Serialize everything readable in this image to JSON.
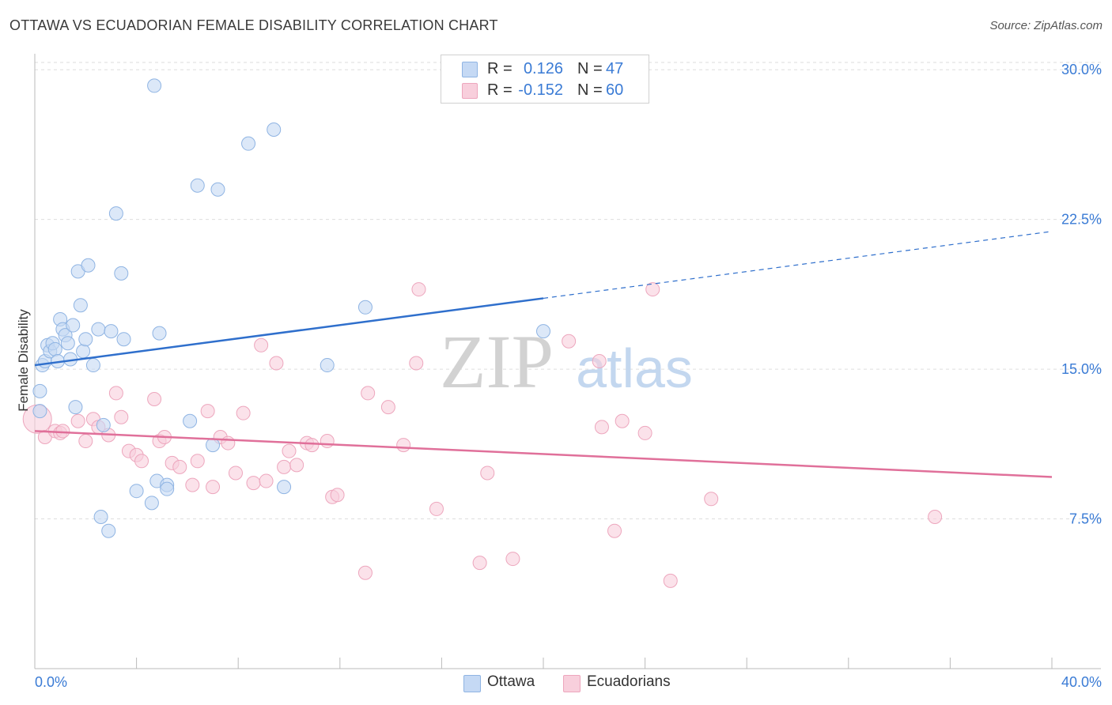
{
  "title": "OTTAWA VS ECUADORIAN FEMALE DISABILITY CORRELATION CHART",
  "source": "Source: ZipAtlas.com",
  "watermark": {
    "zip": "ZIP",
    "atlas": "atlas"
  },
  "legend_top": [
    {
      "r_label": "R =",
      "r_value": "0.126",
      "n_label": "N =",
      "n_value": "47"
    },
    {
      "r_label": "R =",
      "r_value": "-0.152",
      "n_label": "N =",
      "n_value": "60"
    }
  ],
  "legend_bottom": [
    "Ottawa",
    "Ecuadorians"
  ],
  "colors": {
    "ottawa_fill": "#c5d9f4",
    "ottawa_stroke": "#8fb4e3",
    "ottawa_line": "#2f6fcc",
    "ecuador_fill": "#f8cfdc",
    "ecuador_stroke": "#eda6bd",
    "ecuador_line": "#e0709a",
    "tick_label": "#3a7bd5",
    "grid": "#dddddd"
  },
  "chart_data": {
    "type": "scatter",
    "title": "OTTAWA VS ECUADORIAN FEMALE DISABILITY CORRELATION CHART",
    "xlabel": "",
    "ylabel": "Female Disability",
    "xlim": [
      0,
      40
    ],
    "ylim": [
      0,
      30.8
    ],
    "x_tick_labels": [
      "0.0%",
      "40.0%"
    ],
    "y_ticks": [
      7.5,
      15.0,
      22.5,
      30.0
    ],
    "y_tick_labels": [
      "7.5%",
      "15.0%",
      "22.5%",
      "30.0%"
    ],
    "grid": true,
    "legend_position": "top-center",
    "series": [
      {
        "name": "Ottawa",
        "r": 0.126,
        "n": 47,
        "trend": {
          "x0": 0,
          "y0": 15.2,
          "x1": 40,
          "y1": 21.9,
          "solid_until_x": 20
        },
        "points": [
          [
            0.2,
            12.9
          ],
          [
            0.2,
            13.9
          ],
          [
            0.3,
            15.2
          ],
          [
            0.4,
            15.4
          ],
          [
            0.5,
            16.2
          ],
          [
            0.6,
            15.9
          ],
          [
            0.7,
            16.3
          ],
          [
            0.8,
            16.0
          ],
          [
            0.9,
            15.4
          ],
          [
            1.0,
            17.5
          ],
          [
            1.1,
            17.0
          ],
          [
            1.2,
            16.7
          ],
          [
            1.3,
            16.3
          ],
          [
            1.4,
            15.5
          ],
          [
            1.5,
            17.2
          ],
          [
            1.6,
            13.1
          ],
          [
            1.7,
            19.9
          ],
          [
            1.8,
            18.2
          ],
          [
            1.9,
            15.9
          ],
          [
            2.0,
            16.5
          ],
          [
            2.1,
            20.2
          ],
          [
            2.3,
            15.2
          ],
          [
            2.5,
            17.0
          ],
          [
            2.6,
            7.6
          ],
          [
            2.7,
            12.2
          ],
          [
            2.9,
            6.9
          ],
          [
            3.0,
            16.9
          ],
          [
            3.2,
            22.8
          ],
          [
            3.4,
            19.8
          ],
          [
            3.5,
            16.5
          ],
          [
            4.0,
            8.9
          ],
          [
            4.6,
            8.3
          ],
          [
            4.7,
            29.2
          ],
          [
            4.8,
            9.4
          ],
          [
            4.9,
            16.8
          ],
          [
            5.2,
            9.2
          ],
          [
            5.2,
            9.0
          ],
          [
            6.1,
            12.4
          ],
          [
            6.4,
            24.2
          ],
          [
            7.0,
            11.2
          ],
          [
            7.2,
            24.0
          ],
          [
            8.4,
            26.3
          ],
          [
            9.4,
            27.0
          ],
          [
            9.8,
            9.1
          ],
          [
            11.5,
            15.2
          ],
          [
            13.0,
            18.1
          ],
          [
            20.0,
            16.9
          ]
        ]
      },
      {
        "name": "Ecuadorians",
        "r": -0.152,
        "n": 60,
        "trend": {
          "x0": 0,
          "y0": 11.9,
          "x1": 40,
          "y1": 9.6,
          "solid_until_x": 40
        },
        "points": [
          [
            0.1,
            12.5
          ],
          [
            0.4,
            11.6
          ],
          [
            0.8,
            11.9
          ],
          [
            1.0,
            11.8
          ],
          [
            1.1,
            11.9
          ],
          [
            1.7,
            12.4
          ],
          [
            2.0,
            11.4
          ],
          [
            2.3,
            12.5
          ],
          [
            2.5,
            12.1
          ],
          [
            2.9,
            11.7
          ],
          [
            3.2,
            13.8
          ],
          [
            3.4,
            12.6
          ],
          [
            3.7,
            10.9
          ],
          [
            4.0,
            10.7
          ],
          [
            4.2,
            10.4
          ],
          [
            4.7,
            13.5
          ],
          [
            4.9,
            11.4
          ],
          [
            5.1,
            11.6
          ],
          [
            5.4,
            10.3
          ],
          [
            5.7,
            10.1
          ],
          [
            6.2,
            9.2
          ],
          [
            6.4,
            10.4
          ],
          [
            6.8,
            12.9
          ],
          [
            7.0,
            9.1
          ],
          [
            7.3,
            11.6
          ],
          [
            7.6,
            11.3
          ],
          [
            7.9,
            9.8
          ],
          [
            8.2,
            12.8
          ],
          [
            8.6,
            9.3
          ],
          [
            8.9,
            16.2
          ],
          [
            9.1,
            9.4
          ],
          [
            9.5,
            15.3
          ],
          [
            9.8,
            10.1
          ],
          [
            10.0,
            10.9
          ],
          [
            10.3,
            10.2
          ],
          [
            10.7,
            11.3
          ],
          [
            10.9,
            11.2
          ],
          [
            11.5,
            11.4
          ],
          [
            11.7,
            8.6
          ],
          [
            11.9,
            8.7
          ],
          [
            13.0,
            4.8
          ],
          [
            13.1,
            13.8
          ],
          [
            13.9,
            13.1
          ],
          [
            14.5,
            11.2
          ],
          [
            15.0,
            15.3
          ],
          [
            15.1,
            19.0
          ],
          [
            15.8,
            8.0
          ],
          [
            17.5,
            5.3
          ],
          [
            17.8,
            9.8
          ],
          [
            18.8,
            5.5
          ],
          [
            21.0,
            16.4
          ],
          [
            22.2,
            15.4
          ],
          [
            22.3,
            12.1
          ],
          [
            22.8,
            6.9
          ],
          [
            23.1,
            12.4
          ],
          [
            24.0,
            11.8
          ],
          [
            24.3,
            19.0
          ],
          [
            25.0,
            4.4
          ],
          [
            26.6,
            8.5
          ],
          [
            35.4,
            7.6
          ]
        ]
      }
    ]
  }
}
